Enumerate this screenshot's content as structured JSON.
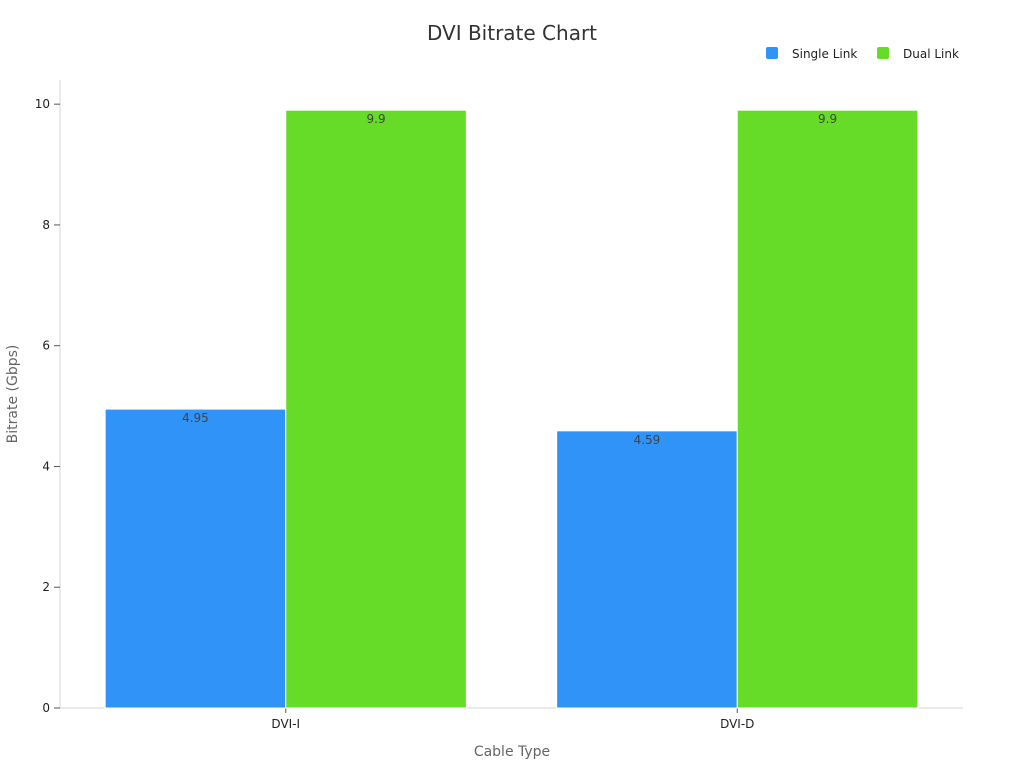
{
  "chart_data": {
    "type": "bar",
    "title": "DVI Bitrate Chart",
    "xlabel": "Cable Type",
    "ylabel": "Bitrate (Gbps)",
    "categories": [
      "DVI-I",
      "DVI-D"
    ],
    "series": [
      {
        "name": "Single Link",
        "values": [
          4.95,
          4.59
        ],
        "color": "#3093f7"
      },
      {
        "name": "Dual Link",
        "values": [
          9.9,
          9.9
        ],
        "color": "#66db28"
      }
    ],
    "ylim": [
      0,
      10.4
    ],
    "yticks": [
      0,
      2,
      4,
      6,
      8,
      10
    ],
    "data_labels": {
      "series": [
        [
          "4.95",
          "4.59"
        ],
        [
          "9.9",
          "9.9"
        ]
      ]
    },
    "grid": false,
    "legend_position": "top-right"
  }
}
